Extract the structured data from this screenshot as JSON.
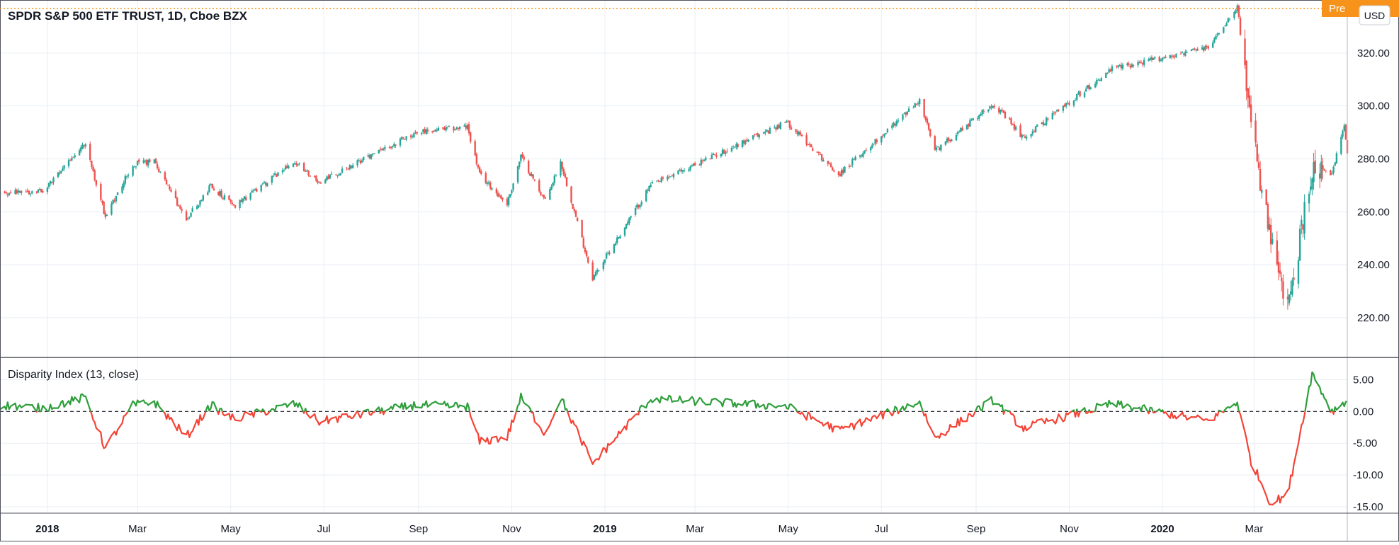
{
  "chart_data": [
    {
      "type": "candlestick",
      "title": "SPDR S&P 500 ETF TRUST, 1D, Cboe BZX",
      "currency_badge": "USD",
      "pre_badge": "Pre",
      "ylim": [
        205,
        340
      ],
      "yticks": [
        "220.00",
        "240.00",
        "260.00",
        "280.00",
        "300.00",
        "320.00"
      ],
      "ytick_values": [
        220,
        240,
        260,
        280,
        300,
        320
      ],
      "grid": true,
      "colors": {
        "up": "#26a69a",
        "down": "#ef5350",
        "grid": "#e9eef3",
        "pre_line": "#f7931a"
      },
      "anchors": [
        [
          "2017-12-01",
          267
        ],
        [
          "2017-12-29",
          268
        ],
        [
          "2018-01-26",
          286
        ],
        [
          "2018-02-08",
          258
        ],
        [
          "2018-02-26",
          278
        ],
        [
          "2018-03-12",
          279
        ],
        [
          "2018-04-02",
          257
        ],
        [
          "2018-04-18",
          270
        ],
        [
          "2018-05-03",
          262
        ],
        [
          "2018-06-12",
          279
        ],
        [
          "2018-06-28",
          271
        ],
        [
          "2018-08-30",
          290
        ],
        [
          "2018-10-03",
          292
        ],
        [
          "2018-10-11",
          274
        ],
        [
          "2018-10-29",
          263
        ],
        [
          "2018-11-07",
          281
        ],
        [
          "2018-11-23",
          264
        ],
        [
          "2018-12-03",
          279
        ],
        [
          "2018-12-24",
          235
        ],
        [
          "2019-01-31",
          270
        ],
        [
          "2019-04-30",
          294
        ],
        [
          "2019-06-03",
          274
        ],
        [
          "2019-07-26",
          302
        ],
        [
          "2019-08-05",
          283
        ],
        [
          "2019-09-12",
          301
        ],
        [
          "2019-10-02",
          288
        ],
        [
          "2019-11-29",
          314
        ],
        [
          "2020-01-31",
          322
        ],
        [
          "2020-02-19",
          338
        ],
        [
          "2020-02-28",
          292
        ],
        [
          "2020-03-12",
          248
        ],
        [
          "2020-03-23",
          223
        ],
        [
          "2020-04-08",
          276
        ],
        [
          "2020-04-21",
          274
        ],
        [
          "2020-04-29",
          293
        ],
        [
          "2020-05-01",
          282
        ]
      ]
    },
    {
      "type": "line",
      "title": "Disparity Index (13, close)",
      "ylim": [
        -16,
        8.5
      ],
      "yticks": [
        "5.00",
        "0.00",
        "-5.00",
        "-10.00",
        "-15.00"
      ],
      "ytick_values": [
        5,
        0,
        -5,
        -10,
        -15
      ],
      "zero_line": "dashed",
      "colors": {
        "positive": "#2e9e3b",
        "negative": "#f44336"
      },
      "anchors": [
        [
          "2017-12-01",
          1.0
        ],
        [
          "2017-12-29",
          0.5
        ],
        [
          "2018-01-26",
          2.2
        ],
        [
          "2018-02-08",
          -5.8
        ],
        [
          "2018-02-26",
          1.0
        ],
        [
          "2018-03-12",
          1.5
        ],
        [
          "2018-04-02",
          -4.0
        ],
        [
          "2018-04-18",
          1.0
        ],
        [
          "2018-05-03",
          -1.2
        ],
        [
          "2018-06-12",
          1.2
        ],
        [
          "2018-06-28",
          -1.6
        ],
        [
          "2018-08-30",
          1.0
        ],
        [
          "2018-10-03",
          0.8
        ],
        [
          "2018-10-11",
          -4.8
        ],
        [
          "2018-10-29",
          -4.0
        ],
        [
          "2018-11-07",
          2.2
        ],
        [
          "2018-11-23",
          -3.5
        ],
        [
          "2018-12-03",
          2.2
        ],
        [
          "2018-12-24",
          -8.2
        ],
        [
          "2019-01-31",
          2.0
        ],
        [
          "2019-04-30",
          0.8
        ],
        [
          "2019-06-03",
          -3.0
        ],
        [
          "2019-07-26",
          1.5
        ],
        [
          "2019-08-05",
          -4.2
        ],
        [
          "2019-09-12",
          1.8
        ],
        [
          "2019-10-02",
          -2.6
        ],
        [
          "2019-11-29",
          1.2
        ],
        [
          "2020-01-31",
          -1.5
        ],
        [
          "2020-02-19",
          1.5
        ],
        [
          "2020-02-28",
          -7.8
        ],
        [
          "2020-03-12",
          -14.5
        ],
        [
          "2020-03-23",
          -13.0
        ],
        [
          "2020-04-08",
          6.0
        ],
        [
          "2020-04-21",
          0.0
        ],
        [
          "2020-04-29",
          1.5
        ],
        [
          "2020-05-01",
          1.5
        ]
      ]
    }
  ],
  "time_axis": {
    "range": [
      "2017-12-01",
      "2020-05-01"
    ],
    "labels": [
      {
        "text": "2018",
        "date": "2018-01-01",
        "bold": true
      },
      {
        "text": "Mar",
        "date": "2018-03-01",
        "bold": false
      },
      {
        "text": "May",
        "date": "2018-05-01",
        "bold": false
      },
      {
        "text": "Jul",
        "date": "2018-07-01",
        "bold": false
      },
      {
        "text": "Sep",
        "date": "2018-09-01",
        "bold": false
      },
      {
        "text": "Nov",
        "date": "2018-11-01",
        "bold": false
      },
      {
        "text": "2019",
        "date": "2019-01-01",
        "bold": true
      },
      {
        "text": "Mar",
        "date": "2019-03-01",
        "bold": false
      },
      {
        "text": "May",
        "date": "2019-05-01",
        "bold": false
      },
      {
        "text": "Jul",
        "date": "2019-07-01",
        "bold": false
      },
      {
        "text": "Sep",
        "date": "2019-09-01",
        "bold": false
      },
      {
        "text": "Nov",
        "date": "2019-11-01",
        "bold": false
      },
      {
        "text": "2020",
        "date": "2020-01-01",
        "bold": true
      },
      {
        "text": "Mar",
        "date": "2020-03-01",
        "bold": false
      }
    ]
  }
}
